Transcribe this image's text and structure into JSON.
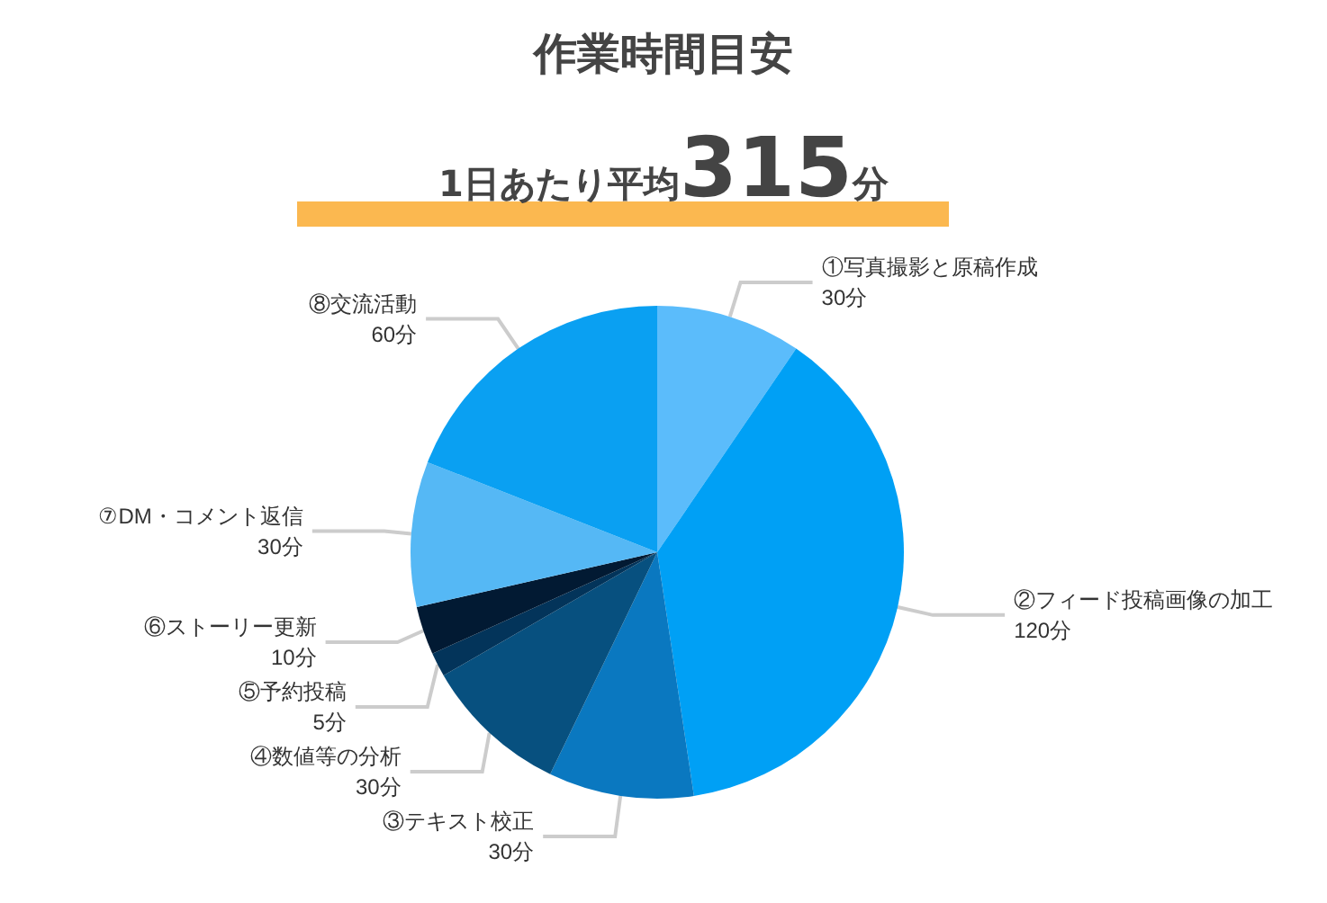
{
  "chart_data": {
    "type": "pie",
    "title": "作業時間目安",
    "subtitle": "1日あたり平均315分",
    "categories": [
      "①写真撮影と原稿作成",
      "②フィード投稿画像の加工",
      "③テキスト校正",
      "④数値等の分析",
      "⑤予約投稿",
      "⑥ストーリー更新",
      "⑦DM・コメント返信",
      "⑧交流活動"
    ],
    "values": [
      30,
      120,
      30,
      30,
      5,
      10,
      30,
      60
    ],
    "value_labels": [
      "30分",
      "120分",
      "30分",
      "30分",
      "5分",
      "10分",
      "30分",
      "60分"
    ],
    "colors": [
      "#5bbcfb",
      "#00a0f5",
      "#0a78c0",
      "#07507f",
      "#03345a",
      "#021a33",
      "#55b8f5",
      "#0aa0f2"
    ],
    "legend": false
  }
}
